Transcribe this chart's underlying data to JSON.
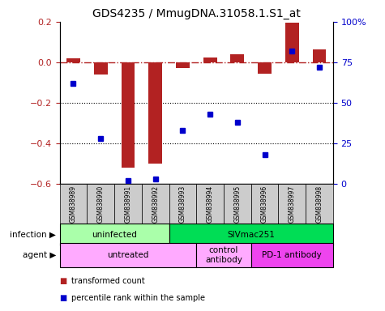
{
  "title": "GDS4235 / MmugDNA.31058.1.S1_at",
  "samples": [
    "GSM838989",
    "GSM838990",
    "GSM838991",
    "GSM838992",
    "GSM838993",
    "GSM838994",
    "GSM838995",
    "GSM838996",
    "GSM838997",
    "GSM838998"
  ],
  "red_values": [
    0.02,
    -0.06,
    -0.52,
    -0.5,
    -0.03,
    0.025,
    0.04,
    -0.055,
    0.195,
    0.065
  ],
  "blue_values": [
    62,
    28,
    2,
    3,
    33,
    43,
    38,
    18,
    82,
    72
  ],
  "ylim_left": [
    -0.6,
    0.2
  ],
  "ylim_right": [
    0,
    100
  ],
  "yticks_left": [
    -0.6,
    -0.4,
    -0.2,
    0.0,
    0.2
  ],
  "yticks_right": [
    0,
    25,
    50,
    75,
    100
  ],
  "ytick_labels_right": [
    "0",
    "25",
    "50",
    "75",
    "100%"
  ],
  "red_color": "#b22222",
  "blue_color": "#0000cc",
  "infection_groups": [
    {
      "label": "uninfected",
      "start": 0,
      "end": 4,
      "color": "#aaffaa"
    },
    {
      "label": "SIVmac251",
      "start": 4,
      "end": 10,
      "color": "#00dd55"
    }
  ],
  "agent_groups": [
    {
      "label": "untreated",
      "start": 0,
      "end": 5,
      "color": "#ffaaff"
    },
    {
      "label": "control\nantibody",
      "start": 5,
      "end": 7,
      "color": "#ffaaff"
    },
    {
      "label": "PD-1 antibody",
      "start": 7,
      "end": 10,
      "color": "#ee44ee"
    }
  ],
  "legend_items": [
    {
      "label": "transformed count",
      "color": "#b22222"
    },
    {
      "label": "percentile rank within the sample",
      "color": "#0000cc"
    }
  ],
  "infection_label": "infection",
  "agent_label": "agent",
  "bar_width": 0.5,
  "sample_bg": "#cccccc",
  "title_fontsize": 10,
  "tick_fontsize": 8,
  "label_fontsize": 7.5,
  "sample_fontsize": 5.5
}
